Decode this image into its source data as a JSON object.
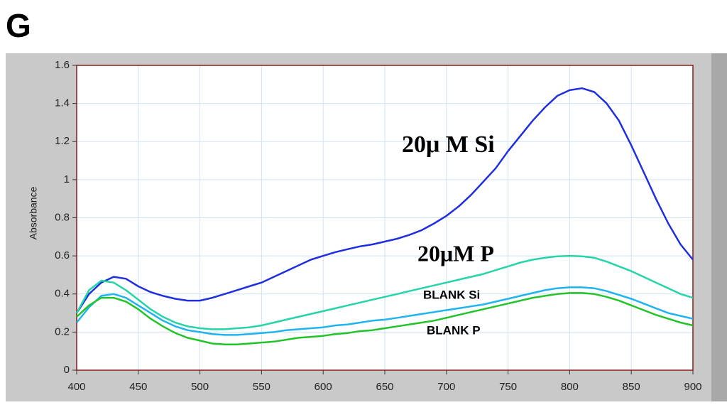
{
  "panel_label": "G",
  "chart_data": {
    "type": "line",
    "y_label": "Absorbance",
    "x": [
      400,
      410,
      420,
      430,
      440,
      450,
      460,
      470,
      480,
      490,
      500,
      510,
      520,
      530,
      540,
      550,
      560,
      570,
      580,
      590,
      600,
      610,
      620,
      630,
      640,
      650,
      660,
      670,
      680,
      690,
      700,
      710,
      720,
      730,
      740,
      750,
      760,
      770,
      780,
      790,
      800,
      810,
      820,
      830,
      840,
      850,
      860,
      870,
      880,
      890,
      900
    ],
    "xlim": [
      400,
      900
    ],
    "xticks": [
      400,
      450,
      500,
      550,
      600,
      650,
      700,
      750,
      800,
      850,
      900
    ],
    "ylim": [
      0,
      1.6
    ],
    "yticks": [
      0,
      0.2,
      0.4,
      0.6,
      0.8,
      1,
      1.2,
      1.4,
      1.6
    ],
    "grid": true,
    "series": [
      {
        "name": "20μ M Si",
        "color": "#1f2fe0",
        "values": [
          0.3,
          0.4,
          0.46,
          0.49,
          0.48,
          0.44,
          0.41,
          0.39,
          0.375,
          0.365,
          0.365,
          0.38,
          0.4,
          0.42,
          0.44,
          0.46,
          0.49,
          0.52,
          0.55,
          0.58,
          0.6,
          0.62,
          0.635,
          0.65,
          0.66,
          0.675,
          0.69,
          0.71,
          0.735,
          0.77,
          0.81,
          0.86,
          0.92,
          0.99,
          1.06,
          1.15,
          1.23,
          1.31,
          1.38,
          1.44,
          1.47,
          1.48,
          1.46,
          1.4,
          1.31,
          1.18,
          1.04,
          0.9,
          0.77,
          0.66,
          0.58
        ]
      },
      {
        "name": "20μM P",
        "color": "#25d4a8",
        "values": [
          0.3,
          0.42,
          0.47,
          0.46,
          0.42,
          0.37,
          0.32,
          0.28,
          0.25,
          0.23,
          0.22,
          0.215,
          0.215,
          0.22,
          0.225,
          0.235,
          0.25,
          0.265,
          0.28,
          0.295,
          0.31,
          0.325,
          0.34,
          0.355,
          0.37,
          0.385,
          0.4,
          0.415,
          0.43,
          0.445,
          0.46,
          0.475,
          0.49,
          0.505,
          0.525,
          0.545,
          0.565,
          0.58,
          0.59,
          0.598,
          0.6,
          0.598,
          0.59,
          0.57,
          0.545,
          0.52,
          0.49,
          0.46,
          0.43,
          0.4,
          0.38
        ]
      },
      {
        "name": "BLANK Si",
        "color": "#1fb4f0",
        "values": [
          0.25,
          0.33,
          0.39,
          0.4,
          0.38,
          0.34,
          0.3,
          0.26,
          0.23,
          0.21,
          0.2,
          0.19,
          0.185,
          0.185,
          0.19,
          0.195,
          0.2,
          0.21,
          0.215,
          0.22,
          0.225,
          0.235,
          0.24,
          0.25,
          0.26,
          0.265,
          0.275,
          0.285,
          0.295,
          0.305,
          0.315,
          0.325,
          0.335,
          0.345,
          0.36,
          0.375,
          0.39,
          0.405,
          0.42,
          0.43,
          0.435,
          0.435,
          0.43,
          0.415,
          0.395,
          0.375,
          0.35,
          0.325,
          0.3,
          0.285,
          0.27
        ]
      },
      {
        "name": "BLANK P",
        "color": "#22c42a",
        "values": [
          0.28,
          0.34,
          0.38,
          0.38,
          0.36,
          0.32,
          0.27,
          0.23,
          0.195,
          0.17,
          0.155,
          0.14,
          0.135,
          0.135,
          0.14,
          0.145,
          0.15,
          0.16,
          0.17,
          0.175,
          0.18,
          0.19,
          0.195,
          0.205,
          0.21,
          0.22,
          0.23,
          0.24,
          0.25,
          0.26,
          0.275,
          0.29,
          0.305,
          0.32,
          0.335,
          0.35,
          0.365,
          0.38,
          0.39,
          0.4,
          0.405,
          0.405,
          0.4,
          0.385,
          0.365,
          0.34,
          0.315,
          0.29,
          0.27,
          0.25,
          0.235
        ]
      }
    ]
  }
}
